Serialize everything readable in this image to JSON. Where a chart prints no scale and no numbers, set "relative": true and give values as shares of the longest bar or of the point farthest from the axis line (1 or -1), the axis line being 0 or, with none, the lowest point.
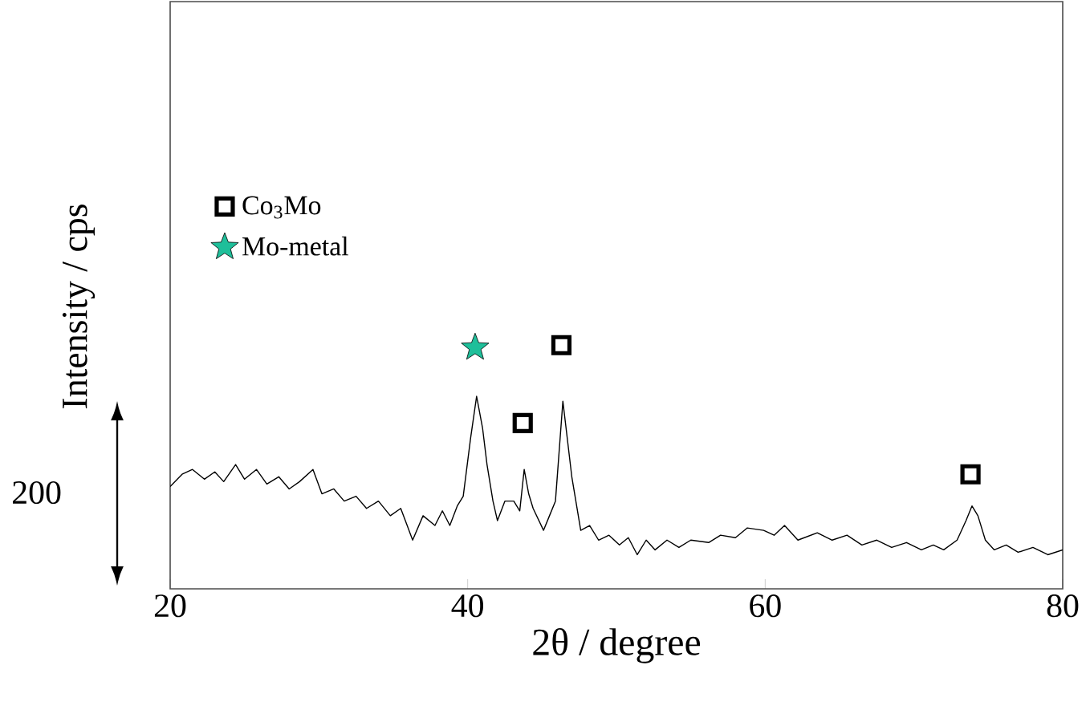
{
  "chart_data": {
    "type": "line",
    "relative": true,
    "xlabel": "2θ / degree",
    "ylabel": "Intensity / cps",
    "annotations": [
      "200"
    ],
    "xlim": [
      20,
      80
    ],
    "xticks": [
      20,
      40,
      60,
      80
    ],
    "legend": "top left",
    "grid": false,
    "series": [
      {
        "color": "#000000",
        "marker": "none",
        "x": [
          20,
          20.8,
          21.5,
          22.3,
          23,
          23.6,
          24.4,
          25,
          25.8,
          26.5,
          27.3,
          28,
          28.7,
          29.6,
          30.2,
          31,
          31.7,
          32.5,
          33.2,
          34,
          34.8,
          35.5,
          36.3,
          37,
          37.8,
          38.3,
          38.8,
          39.3,
          39.7,
          40.2,
          40.6,
          41.0,
          41.3,
          41.7,
          42.0,
          42.5,
          43.1,
          43.5,
          43.8,
          44.1,
          44.4,
          45.1,
          45.5,
          45.9,
          46.4,
          47.0,
          47.6,
          48.2,
          48.8,
          49.5,
          50.2,
          50.8,
          51.4,
          52,
          52.6,
          53.4,
          54.2,
          55,
          56.2,
          57,
          58,
          58.8,
          59.9,
          60.6,
          61.3,
          62.2,
          63.5,
          64.5,
          65.5,
          66.5,
          67.5,
          68.5,
          69.5,
          70.5,
          71.3,
          72,
          72.9,
          73.5,
          73.9,
          74.3,
          74.8,
          75.4,
          76.2,
          77,
          78,
          79,
          80
        ],
        "values": [
          0.42,
          0.47,
          0.49,
          0.45,
          0.48,
          0.44,
          0.51,
          0.45,
          0.49,
          0.43,
          0.46,
          0.41,
          0.44,
          0.49,
          0.39,
          0.41,
          0.36,
          0.38,
          0.33,
          0.36,
          0.3,
          0.33,
          0.2,
          0.3,
          0.26,
          0.32,
          0.26,
          0.34,
          0.38,
          0.62,
          0.79,
          0.66,
          0.51,
          0.36,
          0.28,
          0.36,
          0.36,
          0.32,
          0.49,
          0.39,
          0.33,
          0.24,
          0.3,
          0.36,
          0.77,
          0.46,
          0.24,
          0.26,
          0.2,
          0.22,
          0.18,
          0.21,
          0.14,
          0.2,
          0.16,
          0.2,
          0.17,
          0.2,
          0.19,
          0.22,
          0.21,
          0.25,
          0.24,
          0.22,
          0.26,
          0.2,
          0.23,
          0.2,
          0.22,
          0.18,
          0.2,
          0.17,
          0.19,
          0.16,
          0.18,
          0.16,
          0.2,
          0.28,
          0.34,
          0.3,
          0.2,
          0.16,
          0.18,
          0.15,
          0.17,
          0.14,
          0.16
        ]
      },
      {
        "type": "scatter",
        "name": "Co$_{3}$Mo",
        "color": "#000000",
        "marker": "square",
        "x": [
          43.7,
          46.3,
          73.8
        ],
        "values": [
          0.68,
          1,
          0.47
        ]
      },
      {
        "type": "scatter",
        "name": "Mo-metal",
        "color": "#1fbf9a",
        "marker": "star",
        "x": [
          40.5
        ],
        "values": [
          0.99
        ]
      }
    ]
  }
}
